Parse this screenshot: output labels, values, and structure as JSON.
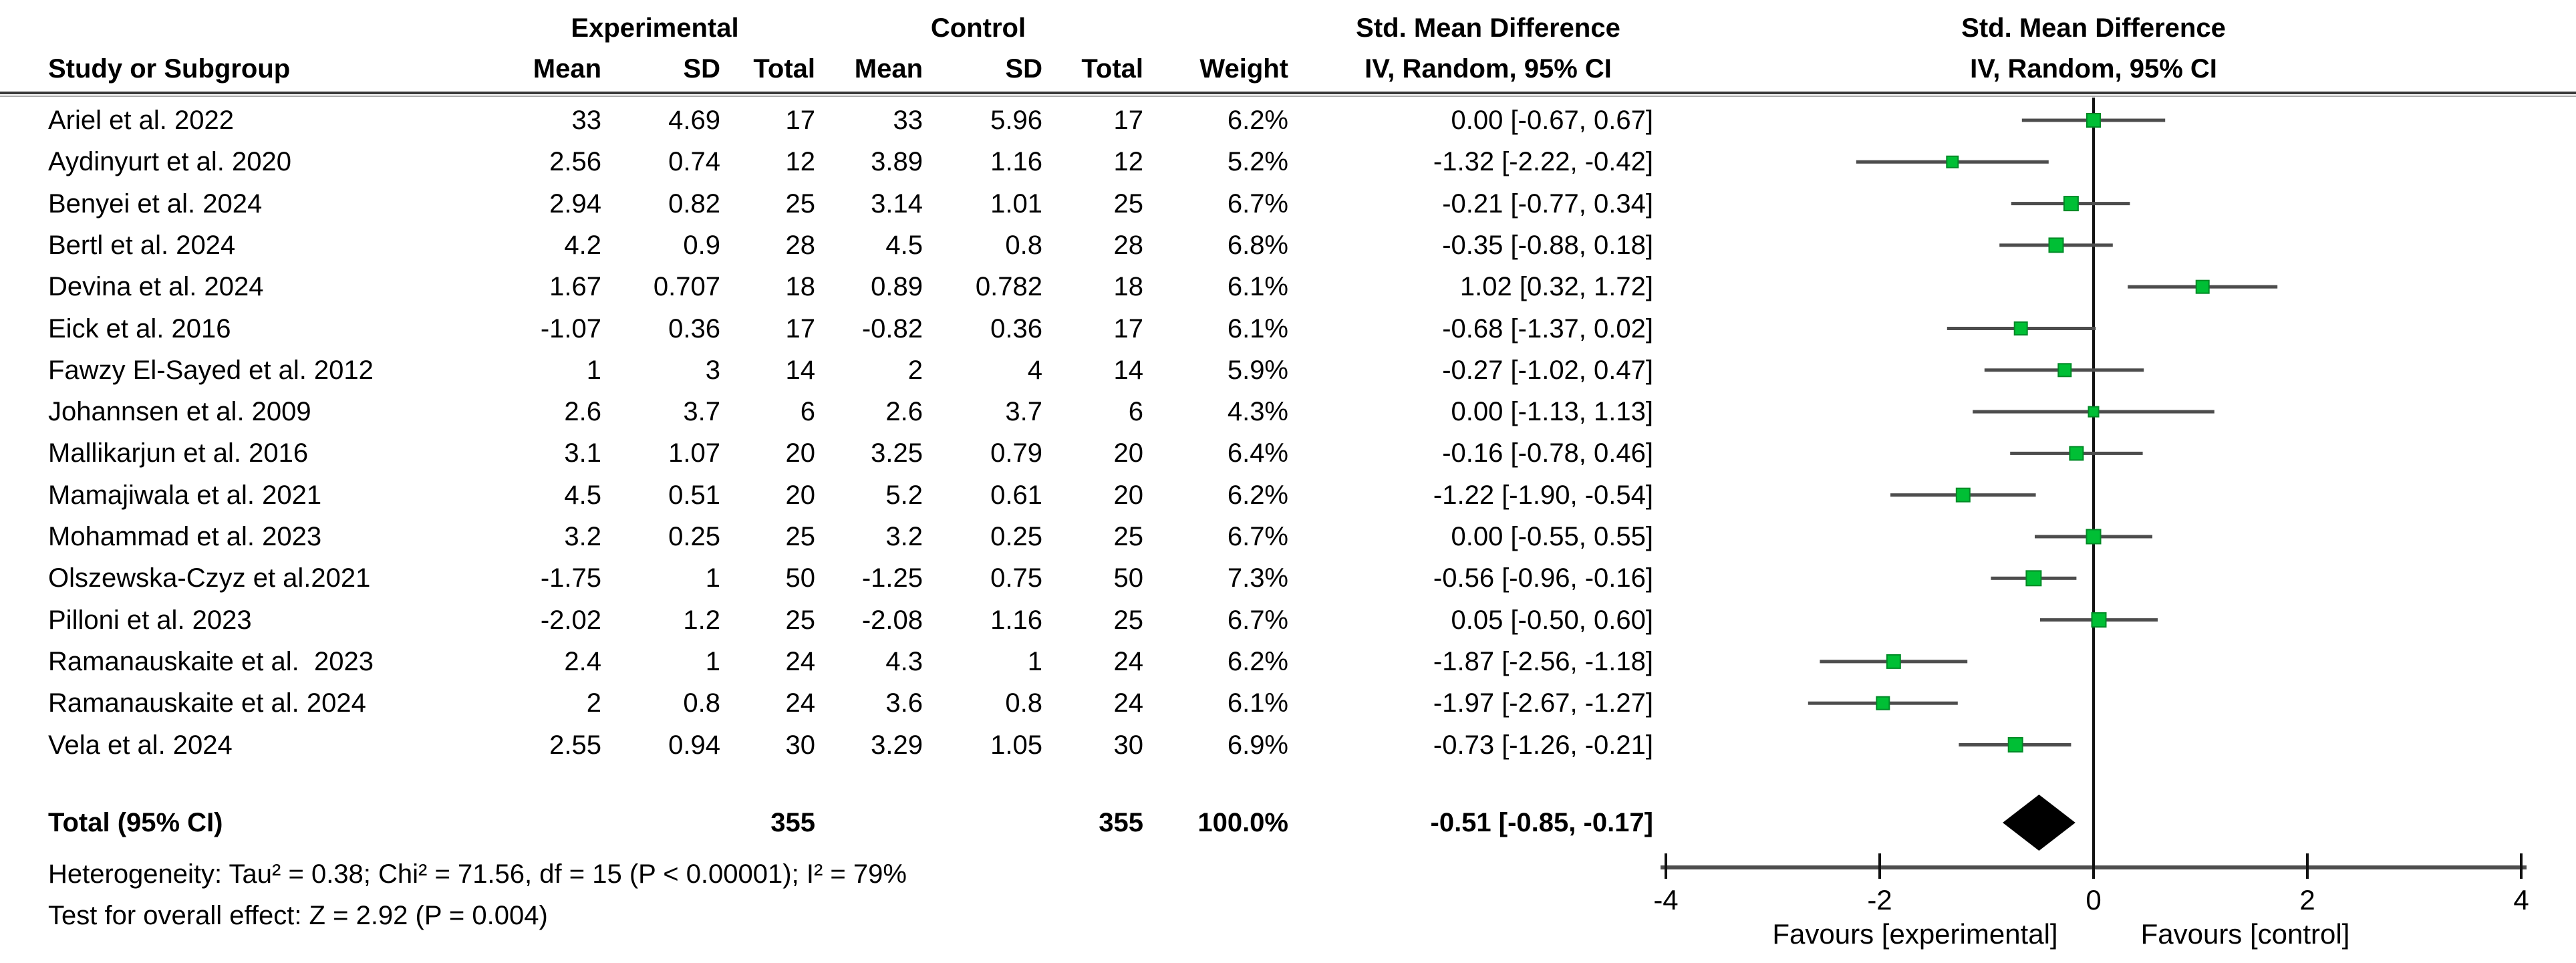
{
  "colors": {
    "square_fill": "#00bf35",
    "square_stroke": "#008a26",
    "ci_line": "#4d4d4d",
    "diamond": "#000000",
    "axis_line": "#4d4d4d",
    "zero_line": "#111111",
    "divider_dark": "#3a3a3a",
    "divider_light": "#ababab",
    "text": "#000000"
  },
  "header": {
    "experimental": "Experimental",
    "control": "Control",
    "smd_left": "Std. Mean Difference",
    "smd_right": "Std. Mean Difference",
    "study": "Study or Subgroup",
    "mean": "Mean",
    "sd": "SD",
    "total": "Total",
    "mean2": "Mean",
    "sd2": "SD",
    "total2": "Total",
    "weight": "Weight",
    "iv_left": "IV, Random, 95% CI",
    "iv_right": "IV, Random, 95% CI"
  },
  "chart_data": {
    "type": "forest",
    "effect_measure": "Std. Mean Difference",
    "method": "IV, Random, 95% CI",
    "axis": {
      "min": -4,
      "max": 4,
      "ticks": [
        -4,
        -2,
        0,
        2,
        4
      ],
      "favours_left": "Favours [experimental]",
      "favours_right": "Favours [control]"
    },
    "studies": [
      {
        "name": "Ariel et al. 2022",
        "e_mean": "33",
        "e_sd": "4.69",
        "e_total": "17",
        "c_mean": "33",
        "c_sd": "5.96",
        "c_total": "17",
        "weight": "6.2%",
        "ci": "0.00 [-0.67, 0.67]",
        "est": 0.0,
        "lo": -0.67,
        "hi": 0.67,
        "w": 6.2
      },
      {
        "name": "Aydinyurt et al. 2020",
        "e_mean": "2.56",
        "e_sd": "0.74",
        "e_total": "12",
        "c_mean": "3.89",
        "c_sd": "1.16",
        "c_total": "12",
        "weight": "5.2%",
        "ci": "-1.32 [-2.22, -0.42]",
        "est": -1.32,
        "lo": -2.22,
        "hi": -0.42,
        "w": 5.2
      },
      {
        "name": "Benyei et al. 2024",
        "e_mean": "2.94",
        "e_sd": "0.82",
        "e_total": "25",
        "c_mean": "3.14",
        "c_sd": "1.01",
        "c_total": "25",
        "weight": "6.7%",
        "ci": "-0.21 [-0.77, 0.34]",
        "est": -0.21,
        "lo": -0.77,
        "hi": 0.34,
        "w": 6.7
      },
      {
        "name": "Bertl et al. 2024",
        "e_mean": "4.2",
        "e_sd": "0.9",
        "e_total": "28",
        "c_mean": "4.5",
        "c_sd": "0.8",
        "c_total": "28",
        "weight": "6.8%",
        "ci": "-0.35 [-0.88, 0.18]",
        "est": -0.35,
        "lo": -0.88,
        "hi": 0.18,
        "w": 6.8
      },
      {
        "name": "Devina et al. 2024",
        "e_mean": "1.67",
        "e_sd": "0.707",
        "e_total": "18",
        "c_mean": "0.89",
        "c_sd": "0.782",
        "c_total": "18",
        "weight": "6.1%",
        "ci": "1.02 [0.32, 1.72]",
        "est": 1.02,
        "lo": 0.32,
        "hi": 1.72,
        "w": 6.1
      },
      {
        "name": "Eick et al. 2016",
        "e_mean": "-1.07",
        "e_sd": "0.36",
        "e_total": "17",
        "c_mean": "-0.82",
        "c_sd": "0.36",
        "c_total": "17",
        "weight": "6.1%",
        "ci": "-0.68 [-1.37, 0.02]",
        "est": -0.68,
        "lo": -1.37,
        "hi": 0.02,
        "w": 6.1
      },
      {
        "name": "Fawzy El-Sayed et al. 2012",
        "e_mean": "1",
        "e_sd": "3",
        "e_total": "14",
        "c_mean": "2",
        "c_sd": "4",
        "c_total": "14",
        "weight": "5.9%",
        "ci": "-0.27 [-1.02, 0.47]",
        "est": -0.27,
        "lo": -1.02,
        "hi": 0.47,
        "w": 5.9
      },
      {
        "name": "Johannsen et al. 2009",
        "e_mean": "2.6",
        "e_sd": "3.7",
        "e_total": "6",
        "c_mean": "2.6",
        "c_sd": "3.7",
        "c_total": "6",
        "weight": "4.3%",
        "ci": "0.00 [-1.13, 1.13]",
        "est": 0.0,
        "lo": -1.13,
        "hi": 1.13,
        "w": 4.3
      },
      {
        "name": "Mallikarjun et al. 2016",
        "e_mean": "3.1",
        "e_sd": "1.07",
        "e_total": "20",
        "c_mean": "3.25",
        "c_sd": "0.79",
        "c_total": "20",
        "weight": "6.4%",
        "ci": "-0.16 [-0.78, 0.46]",
        "est": -0.16,
        "lo": -0.78,
        "hi": 0.46,
        "w": 6.4
      },
      {
        "name": "Mamajiwala et al. 2021",
        "e_mean": "4.5",
        "e_sd": "0.51",
        "e_total": "20",
        "c_mean": "5.2",
        "c_sd": "0.61",
        "c_total": "20",
        "weight": "6.2%",
        "ci": "-1.22 [-1.90, -0.54]",
        "est": -1.22,
        "lo": -1.9,
        "hi": -0.54,
        "w": 6.2
      },
      {
        "name": "Mohammad et al. 2023",
        "e_mean": "3.2",
        "e_sd": "0.25",
        "e_total": "25",
        "c_mean": "3.2",
        "c_sd": "0.25",
        "c_total": "25",
        "weight": "6.7%",
        "ci": "0.00 [-0.55, 0.55]",
        "est": 0.0,
        "lo": -0.55,
        "hi": 0.55,
        "w": 6.7
      },
      {
        "name": "Olszewska-Czyz et al.2021",
        "e_mean": "-1.75",
        "e_sd": "1",
        "e_total": "50",
        "c_mean": "-1.25",
        "c_sd": "0.75",
        "c_total": "50",
        "weight": "7.3%",
        "ci": "-0.56 [-0.96, -0.16]",
        "est": -0.56,
        "lo": -0.96,
        "hi": -0.16,
        "w": 7.3
      },
      {
        "name": "Pilloni et al. 2023",
        "e_mean": "-2.02",
        "e_sd": "1.2",
        "e_total": "25",
        "c_mean": "-2.08",
        "c_sd": "1.16",
        "c_total": "25",
        "weight": "6.7%",
        "ci": "0.05 [-0.50, 0.60]",
        "est": 0.05,
        "lo": -0.5,
        "hi": 0.6,
        "w": 6.7
      },
      {
        "name": "Ramanauskaite et al.  2023",
        "e_mean": "2.4",
        "e_sd": "1",
        "e_total": "24",
        "c_mean": "4.3",
        "c_sd": "1",
        "c_total": "24",
        "weight": "6.2%",
        "ci": "-1.87 [-2.56, -1.18]",
        "est": -1.87,
        "lo": -2.56,
        "hi": -1.18,
        "w": 6.2
      },
      {
        "name": "Ramanauskaite et al. 2024",
        "e_mean": "2",
        "e_sd": "0.8",
        "e_total": "24",
        "c_mean": "3.6",
        "c_sd": "0.8",
        "c_total": "24",
        "weight": "6.1%",
        "ci": "-1.97 [-2.67, -1.27]",
        "est": -1.97,
        "lo": -2.67,
        "hi": -1.27,
        "w": 6.1
      },
      {
        "name": "Vela et al. 2024",
        "e_mean": "2.55",
        "e_sd": "0.94",
        "e_total": "30",
        "c_mean": "3.29",
        "c_sd": "1.05",
        "c_total": "30",
        "weight": "6.9%",
        "ci": "-0.73 [-1.26, -0.21]",
        "est": -0.73,
        "lo": -1.26,
        "hi": -0.21,
        "w": 6.9
      }
    ],
    "total": {
      "label": "Total (95% CI)",
      "e_total": "355",
      "c_total": "355",
      "weight": "100.0%",
      "ci": "-0.51 [-0.85, -0.17]",
      "est": -0.51,
      "lo": -0.85,
      "hi": -0.17
    }
  },
  "footer": {
    "heterogeneity": "Heterogeneity: Tau² = 0.38; Chi² = 71.56, df = 15 (P < 0.00001); I² = 79%",
    "overall": "Test for overall effect: Z = 2.92 (P = 0.004)"
  }
}
